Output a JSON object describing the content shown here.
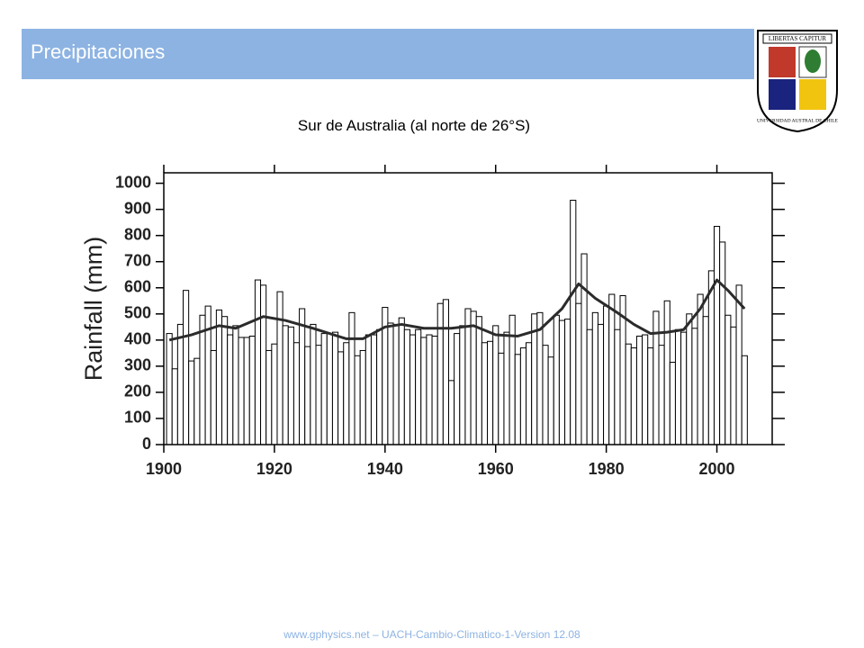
{
  "header": {
    "title": "Precipitaciones"
  },
  "logo": {
    "motto": "LIBERTAS CAPITUR",
    "name": "UNIVERSIDAD AUSTRAL DE CHILE"
  },
  "footer": "www.gphysics.net – UACH-Cambio-Climatico-1-Version 12.08",
  "chart_data": {
    "type": "bar",
    "title": "Sur de Australia (al norte de 26°S)",
    "ylabel": "Rainfall (mm)",
    "x": [
      1901,
      1902,
      1903,
      1904,
      1905,
      1906,
      1907,
      1908,
      1909,
      1910,
      1911,
      1912,
      1913,
      1914,
      1915,
      1916,
      1917,
      1918,
      1919,
      1920,
      1921,
      1922,
      1923,
      1924,
      1925,
      1926,
      1927,
      1928,
      1929,
      1930,
      1931,
      1932,
      1933,
      1934,
      1935,
      1936,
      1937,
      1938,
      1939,
      1940,
      1941,
      1942,
      1943,
      1944,
      1945,
      1946,
      1947,
      1948,
      1949,
      1950,
      1951,
      1952,
      1953,
      1954,
      1955,
      1956,
      1957,
      1958,
      1959,
      1960,
      1961,
      1962,
      1963,
      1964,
      1965,
      1966,
      1967,
      1968,
      1969,
      1970,
      1971,
      1972,
      1973,
      1974,
      1975,
      1976,
      1977,
      1978,
      1979,
      1980,
      1981,
      1982,
      1983,
      1984,
      1985,
      1986,
      1987,
      1988,
      1989,
      1990,
      1991,
      1992,
      1993,
      1994,
      1995,
      1996,
      1997,
      1998,
      1999,
      2000,
      2001,
      2002,
      2003,
      2004,
      2005
    ],
    "values": [
      425,
      290,
      460,
      590,
      320,
      330,
      495,
      530,
      360,
      515,
      490,
      420,
      455,
      410,
      410,
      415,
      630,
      610,
      360,
      385,
      585,
      455,
      450,
      390,
      520,
      375,
      460,
      380,
      425,
      425,
      430,
      355,
      390,
      505,
      340,
      360,
      420,
      420,
      440,
      525,
      465,
      460,
      485,
      440,
      420,
      440,
      410,
      420,
      415,
      540,
      555,
      245,
      425,
      455,
      520,
      510,
      490,
      390,
      395,
      455,
      350,
      430,
      495,
      345,
      370,
      390,
      500,
      505,
      380,
      335,
      495,
      475,
      480,
      935,
      540,
      730,
      440,
      505,
      460,
      530,
      575,
      440,
      570,
      385,
      370,
      415,
      420,
      370,
      510,
      380,
      550,
      315,
      440,
      430,
      500,
      445,
      575,
      490,
      665,
      835,
      775,
      495,
      450,
      610,
      340
    ],
    "color": "#ffffff",
    "line": {
      "x": [
        1901,
        1905,
        1910,
        1913,
        1918,
        1922,
        1927,
        1933,
        1936,
        1940,
        1943,
        1947,
        1952,
        1956,
        1960,
        1964,
        1968,
        1972,
        1975,
        1978,
        1982,
        1985,
        1988,
        1991,
        1994,
        1997,
        2000,
        2002,
        2005
      ],
      "values": [
        400,
        420,
        455,
        445,
        490,
        475,
        445,
        405,
        405,
        450,
        460,
        445,
        445,
        455,
        420,
        415,
        440,
        520,
        615,
        560,
        505,
        460,
        425,
        430,
        440,
        520,
        630,
        590,
        520
      ],
      "color": "#2b2b2b"
    },
    "xlim": [
      1900,
      2010
    ],
    "ylim": [
      0,
      1040
    ],
    "xticks": [
      1900,
      1920,
      1940,
      1960,
      1980,
      2000
    ],
    "yticks": [
      0,
      100,
      200,
      300,
      400,
      500,
      600,
      700,
      800,
      900,
      1000
    ]
  }
}
